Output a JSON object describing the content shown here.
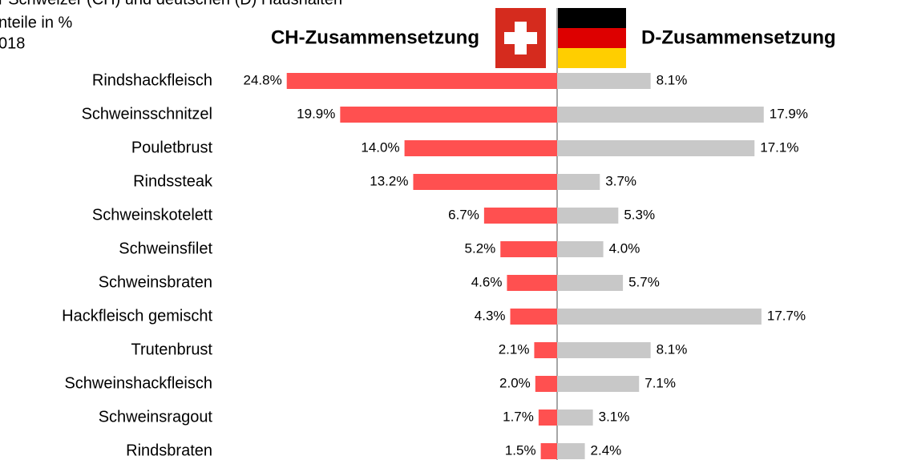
{
  "chart_data": {
    "type": "butterfly",
    "subtitle_lines": [
      "r Schweizer (CH) und deutschen (D) Haushalten",
      "nteile in %",
      "018"
    ],
    "left_title": "CH-Zusammensetzung",
    "right_title": "D-Zusammensetzung",
    "categories": [
      "Rindshackfleisch",
      "Schweinsschnitzel",
      "Pouletbrust",
      "Rindssteak",
      "Schweinskotelett",
      "Schweinsfilet",
      "Schweinsbraten",
      "Hackfleisch gemischt",
      "Trutenbrust",
      "Schweinshackfleisch",
      "Schweinsragout",
      "Rindsbraten"
    ],
    "series": [
      {
        "name": "CH",
        "color": "#ff5050",
        "side": "left",
        "values": [
          24.8,
          19.9,
          14.0,
          13.2,
          6.7,
          5.2,
          4.6,
          4.3,
          2.1,
          2.0,
          1.7,
          1.5
        ],
        "value_labels": [
          "24.8%",
          "19.9%",
          "14.0%",
          "13.2%",
          "6.7%",
          "5.2%",
          "4.6%",
          "4.3%",
          "2.1%",
          "2.0%",
          "1.7%",
          "1.5%"
        ]
      },
      {
        "name": "D",
        "color": "#c8c8c8",
        "side": "right",
        "values": [
          8.1,
          17.9,
          17.1,
          3.7,
          5.3,
          4.0,
          5.7,
          17.7,
          8.1,
          7.1,
          3.1,
          2.4
        ],
        "value_labels": [
          "8.1%",
          "17.9%",
          "17.1%",
          "3.7%",
          "5.3%",
          "4.0%",
          "5.7%",
          "17.7%",
          "8.1%",
          "7.1%",
          "3.1%",
          "2.4%"
        ]
      }
    ]
  }
}
